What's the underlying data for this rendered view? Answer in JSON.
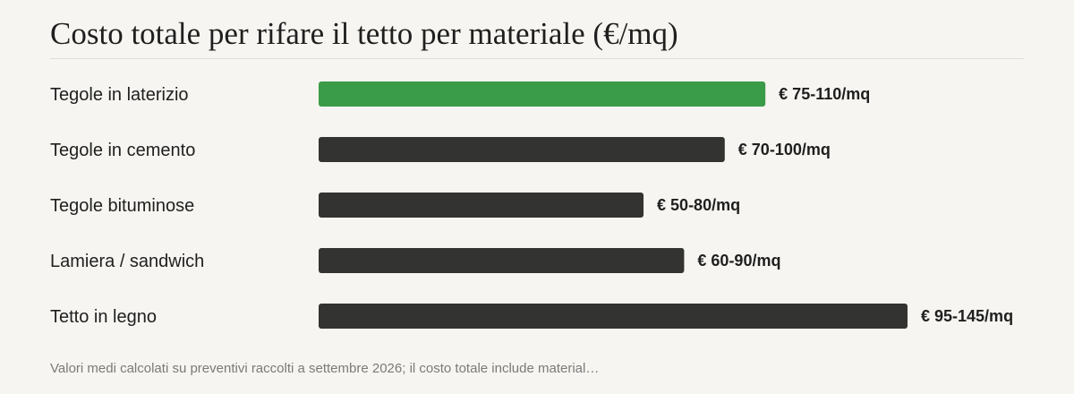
{
  "chart_data": {
    "type": "bar",
    "orientation": "horizontal",
    "title": "Costo totale per rifare il tetto per materiale (€/mq)",
    "categories": [
      "Tegole in laterizio",
      "Tegole in cemento",
      "Tegole bituminose",
      "Lamiera / sandwich",
      "Tetto in legno"
    ],
    "values": [
      110,
      100,
      80,
      90,
      145
    ],
    "ranges": [
      [
        75,
        110
      ],
      [
        70,
        100
      ],
      [
        50,
        80
      ],
      [
        60,
        90
      ],
      [
        95,
        145
      ]
    ],
    "value_labels": [
      "€ 75-110/mq",
      "€ 70-100/mq",
      "€ 50-80/mq",
      "€ 60-90/mq",
      "€ 95-145/mq"
    ],
    "highlight_index": 0,
    "colors": {
      "highlight": "#3a9b48",
      "default": "#333331",
      "background": "#f6f5f1"
    },
    "xlim": [
      0,
      145
    ],
    "grid": false,
    "legend": "none"
  },
  "footnote": "Valori medi calcolati su preventivi raccolti a settembre 2026; il costo totale include material…"
}
